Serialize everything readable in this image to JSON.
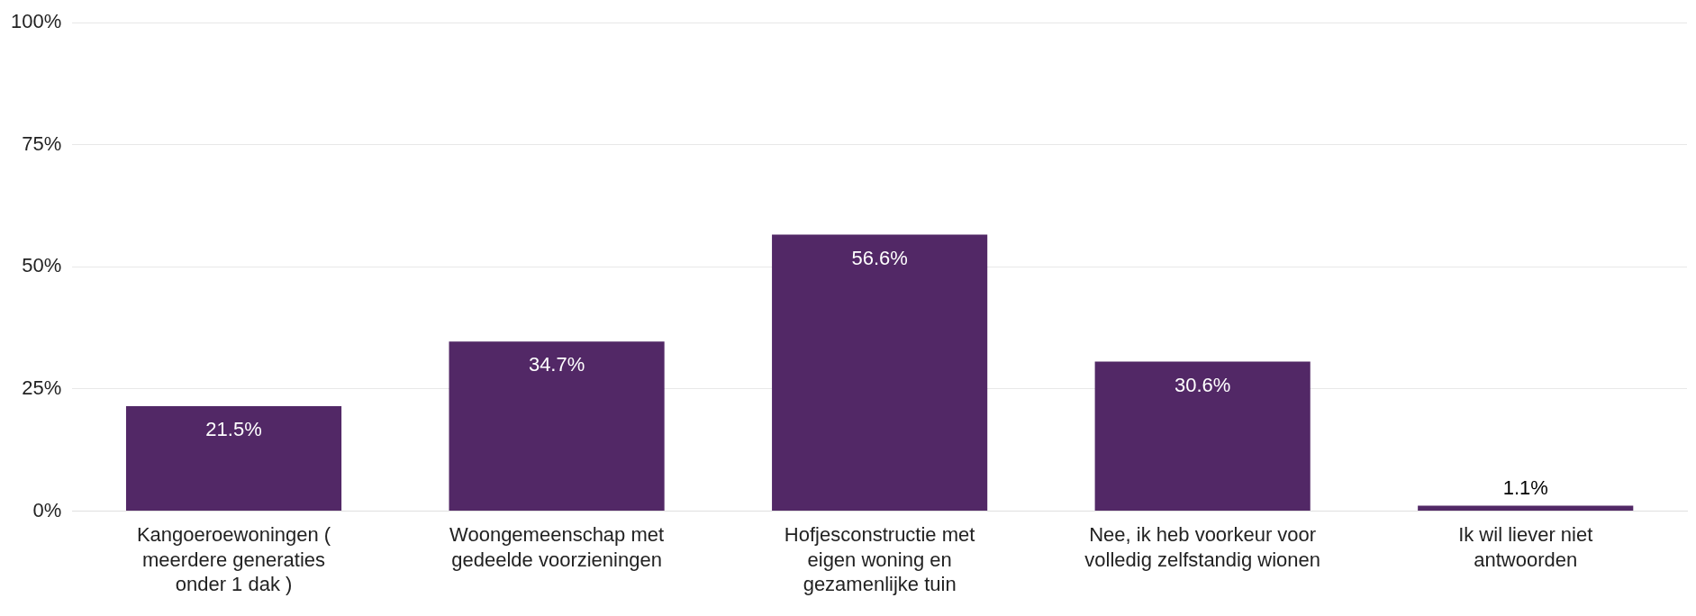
{
  "chart_data": {
    "type": "bar",
    "categories": [
      "Kangoeroewoningen ( meerdere generaties onder 1 dak )",
      "Woongemeenschap met gedeelde voorzieningen",
      "Hofjesconstructie met eigen woning en gezamenlijke tuin",
      "Nee, ik heb voorkeur voor volledig zelfstandig wionen",
      "Ik wil liever niet antwoorden"
    ],
    "values": [
      21.5,
      34.7,
      56.6,
      30.6,
      1.1
    ],
    "value_labels": [
      "21.5%",
      "34.7%",
      "56.6%",
      "30.6%",
      "1.1%"
    ],
    "color": "#522866",
    "ylim": [
      0,
      100
    ],
    "yticks": [
      {
        "value": 0,
        "label": "0%"
      },
      {
        "value": 25,
        "label": "25%"
      },
      {
        "value": 50,
        "label": "50%"
      },
      {
        "value": 75,
        "label": "75%"
      },
      {
        "value": 100,
        "label": "100%"
      }
    ],
    "grid": "y",
    "legend": false
  }
}
